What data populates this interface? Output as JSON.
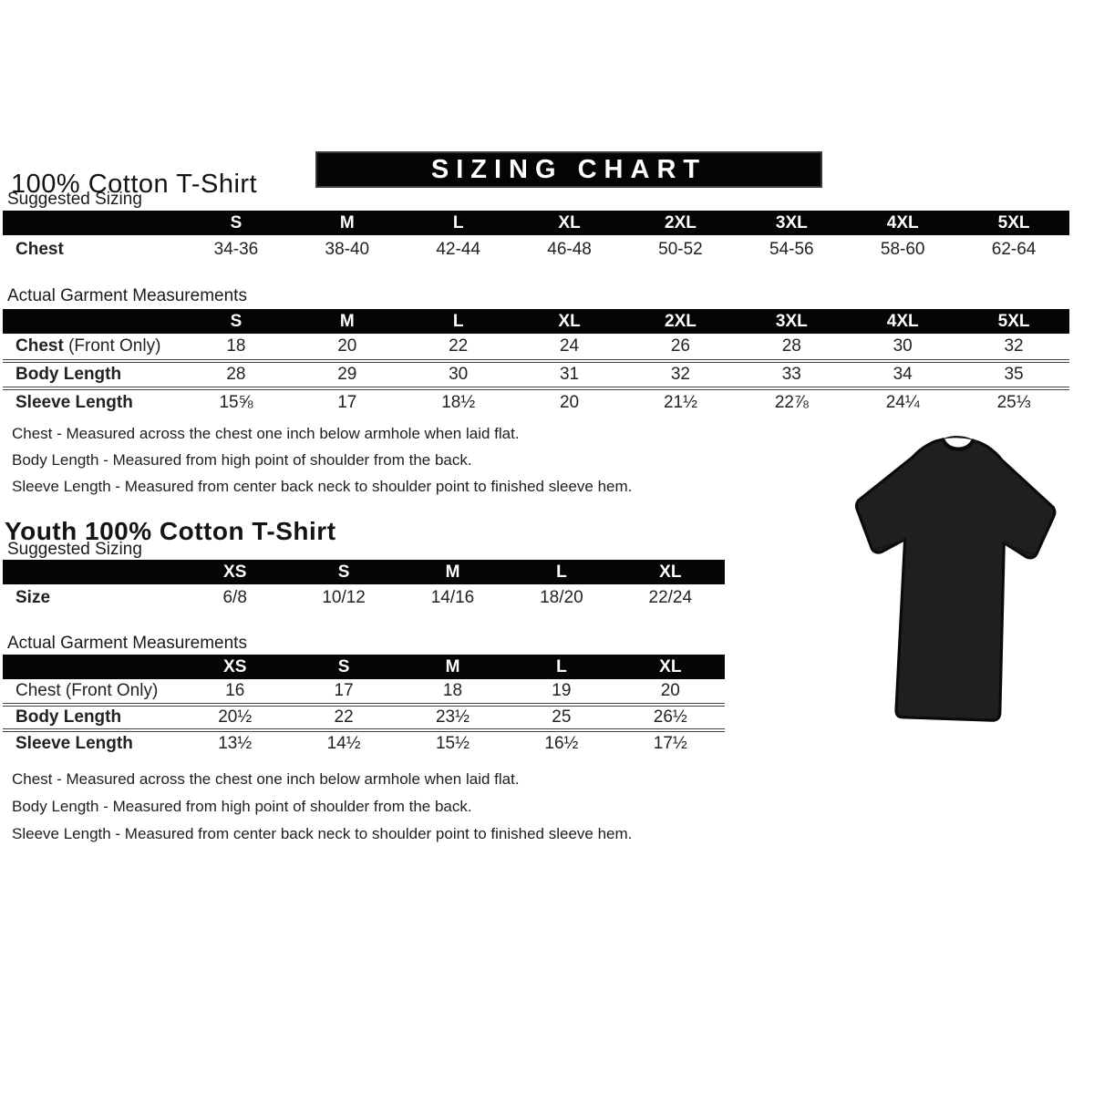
{
  "header": {
    "title": "100% Cotton T-Shirt",
    "banner": "SIZING CHART"
  },
  "adult": {
    "suggested_label": "Suggested Sizing",
    "actual_label": "Actual Garment Measurements",
    "suggested": {
      "columns": [
        "S",
        "M",
        "L",
        "XL",
        "2XL",
        "3XL",
        "4XL",
        "5XL"
      ],
      "rows": [
        {
          "label": "Chest",
          "values": [
            "34-36",
            "38-40",
            "42-44",
            "46-48",
            "50-52",
            "54-56",
            "58-60",
            "62-64"
          ]
        }
      ]
    },
    "actual": {
      "columns": [
        "S",
        "M",
        "L",
        "XL",
        "2XL",
        "3XL",
        "4XL",
        "5XL"
      ],
      "rows": [
        {
          "label": "Chest",
          "suffix": " (Front Only)",
          "values": [
            "18",
            "20",
            "22",
            "24",
            "26",
            "28",
            "30",
            "32"
          ]
        },
        {
          "label": "Body Length",
          "values": [
            "28",
            "29",
            "30",
            "31",
            "32",
            "33",
            "34",
            "35"
          ]
        },
        {
          "label": "Sleeve Length",
          "values": [
            "15⅝",
            "17",
            "18½",
            "20",
            "21½",
            "22⅞",
            "24¼",
            "25⅓"
          ]
        }
      ]
    },
    "notes": [
      "Chest - Measured across the chest one inch below armhole when laid flat.",
      "Body Length - Measured from high point of shoulder from the back.",
      "Sleeve Length - Measured from center back neck to shoulder point to finished sleeve hem."
    ]
  },
  "youth": {
    "title": "Youth 100% Cotton T-Shirt",
    "suggested_label": "Suggested Sizing",
    "actual_label": "Actual Garment Measurements",
    "suggested": {
      "columns": [
        "XS",
        "S",
        "M",
        "L",
        "XL"
      ],
      "rows": [
        {
          "label": "Size",
          "values": [
            "6/8",
            "10/12",
            "14/16",
            "18/20",
            "22/24"
          ]
        }
      ]
    },
    "actual": {
      "columns": [
        "XS",
        "S",
        "M",
        "L",
        "XL"
      ],
      "rows": [
        {
          "label": "Chest",
          "suffix": " (Front Only)",
          "values": [
            "16",
            "17",
            "18",
            "19",
            "20"
          ]
        },
        {
          "label": "Body Length",
          "values": [
            "20½",
            "22",
            "23½",
            "25",
            "26½"
          ]
        },
        {
          "label": "Sleeve Length",
          "values": [
            "13½",
            "14½",
            "15½",
            "16½",
            "17½"
          ]
        }
      ]
    },
    "notes": [
      "Chest - Measured across the chest one inch below armhole when laid flat.",
      "Body Length - Measured from high point of shoulder from the back.",
      "Sleeve Length - Measured from center back neck to shoulder point to finished sleeve hem."
    ]
  },
  "tshirt_image": {
    "description": "black short-sleeve crew neck t-shirt",
    "color": "#1f1f1f"
  },
  "colors": {
    "table_header_bg": "#050505",
    "table_header_text": "#ffffff",
    "banner_bg": "#040404"
  }
}
